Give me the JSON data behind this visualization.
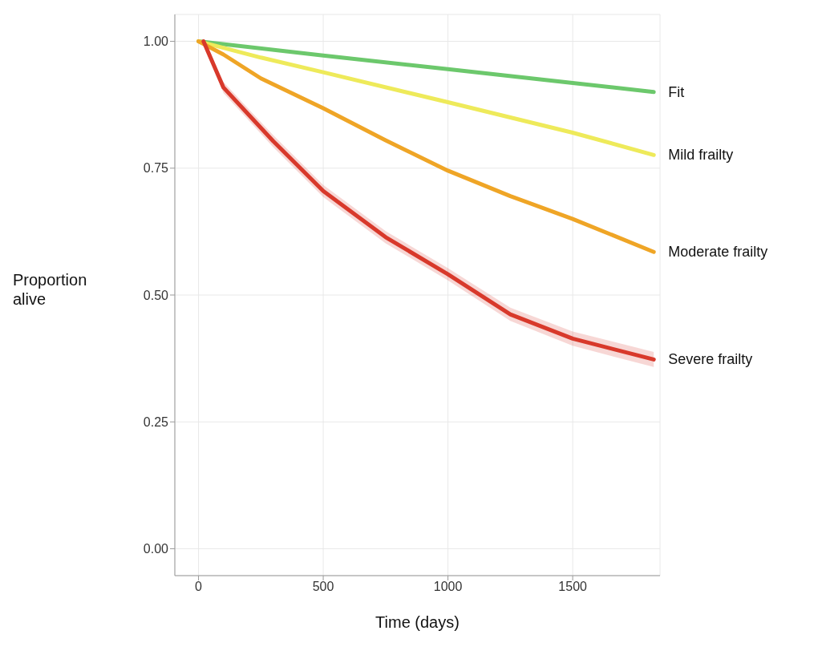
{
  "chart_data": {
    "type": "line",
    "xlabel": "Time (days)",
    "ylabel": "Proportion alive",
    "xlim": [
      -95,
      1850
    ],
    "ylim": [
      -0.053,
      1.053
    ],
    "xticks": [
      0,
      500,
      1000,
      1500
    ],
    "yticks": [
      {
        "value": 0,
        "label": "0.00"
      },
      {
        "value": 0.25,
        "label": "0.25"
      },
      {
        "value": 0.5,
        "label": "0.50"
      },
      {
        "value": 0.75,
        "label": "0.75"
      },
      {
        "value": 1,
        "label": "1.00"
      }
    ],
    "grid": true,
    "marker": "none",
    "line_style": "solid",
    "series": [
      {
        "name": "Fit",
        "color": "#6cc86c",
        "x": [
          0,
          500,
          1000,
          1500,
          1825
        ],
        "values": [
          1.0,
          0.972,
          0.945,
          0.918,
          0.9
        ]
      },
      {
        "name": "Mild frailty",
        "color": "#eeea5a",
        "x": [
          0,
          250,
          500,
          1000,
          1500,
          1825
        ],
        "values": [
          1.0,
          0.968,
          0.939,
          0.88,
          0.82,
          0.776
        ]
      },
      {
        "name": "Moderate frailty",
        "color": "#efa526",
        "x": [
          0,
          100,
          250,
          500,
          750,
          1000,
          1250,
          1500,
          1825
        ],
        "values": [
          1.0,
          0.974,
          0.927,
          0.868,
          0.805,
          0.745,
          0.695,
          0.65,
          0.585
        ]
      },
      {
        "name": "Severe frailty",
        "color": "#d8392b",
        "x": [
          20,
          100,
          200,
          300,
          500,
          750,
          1000,
          1250,
          1500,
          1825
        ],
        "values": [
          1.0,
          0.909,
          0.856,
          0.803,
          0.705,
          0.614,
          0.541,
          0.462,
          0.414,
          0.373
        ],
        "lower": [
          0.995,
          0.898,
          0.845,
          0.791,
          0.693,
          0.602,
          0.529,
          0.449,
          0.4,
          0.358
        ],
        "upper": [
          1.0,
          0.92,
          0.867,
          0.815,
          0.717,
          0.626,
          0.553,
          0.475,
          0.428,
          0.388
        ]
      }
    ]
  }
}
